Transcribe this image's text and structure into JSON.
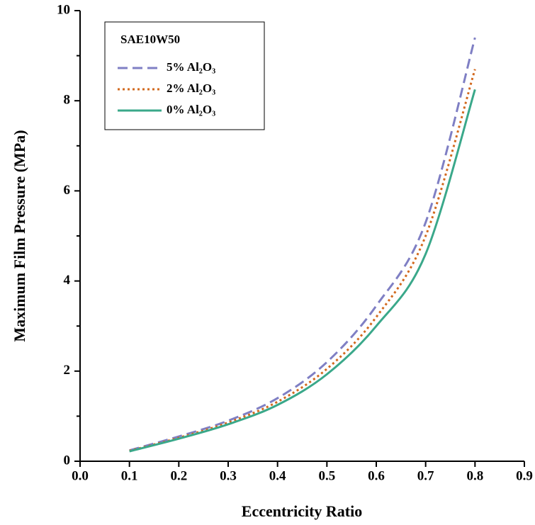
{
  "chart_data": {
    "type": "line",
    "x_label": "Eccentricity Ratio",
    "y_label": "Maximum Film Pressure (MPa)",
    "legend_title": "SAE10W50",
    "x": [
      0.1,
      0.2,
      0.3,
      0.4,
      0.5,
      0.6,
      0.7,
      0.8
    ],
    "series": [
      {
        "name": "5% Al₂O₃",
        "color": "#7f7fc4",
        "dash": "dashed",
        "values": [
          0.24,
          0.55,
          0.9,
          1.4,
          2.2,
          3.45,
          5.3,
          9.4
        ]
      },
      {
        "name": "2% Al₂O₃",
        "color": "#d2691e",
        "dash": "dotted",
        "values": [
          0.23,
          0.52,
          0.86,
          1.32,
          2.05,
          3.2,
          5.0,
          8.7
        ]
      },
      {
        "name": "0% Al₂O₃",
        "color": "#3aa88a",
        "dash": "solid",
        "values": [
          0.22,
          0.5,
          0.82,
          1.25,
          1.93,
          3.0,
          4.6,
          8.25
        ]
      }
    ],
    "xlim": [
      0.0,
      0.9
    ],
    "xticks": [
      {
        "value": 0,
        "label": "0.0"
      },
      0.1,
      0.2,
      0.3,
      0.4,
      0.5,
      0.6,
      0.7,
      0.8,
      0.9
    ],
    "ylim": [
      0,
      10
    ],
    "yticks": [
      0,
      2,
      4,
      6,
      8,
      10
    ],
    "yminor_ticks": [
      1,
      3,
      5,
      7,
      9
    ],
    "legend": "upper left"
  }
}
